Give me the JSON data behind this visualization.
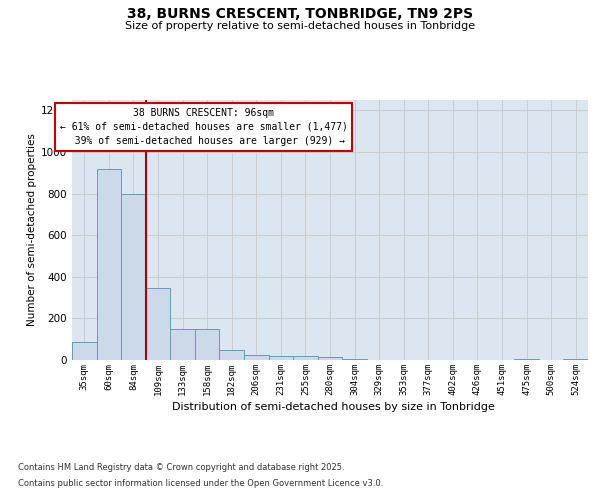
{
  "title_line1": "38, BURNS CRESCENT, TONBRIDGE, TN9 2PS",
  "title_line2": "Size of property relative to semi-detached houses in Tonbridge",
  "xlabel": "Distribution of semi-detached houses by size in Tonbridge",
  "ylabel": "Number of semi-detached properties",
  "categories": [
    "35sqm",
    "60sqm",
    "84sqm",
    "109sqm",
    "133sqm",
    "158sqm",
    "182sqm",
    "206sqm",
    "231sqm",
    "255sqm",
    "280sqm",
    "304sqm",
    "329sqm",
    "353sqm",
    "377sqm",
    "402sqm",
    "426sqm",
    "451sqm",
    "475sqm",
    "500sqm",
    "524sqm"
  ],
  "values": [
    85,
    920,
    800,
    345,
    150,
    150,
    50,
    25,
    20,
    20,
    15,
    5,
    0,
    0,
    0,
    0,
    0,
    0,
    5,
    0,
    5
  ],
  "bar_color": "#ccd9e8",
  "bar_edge_color": "#6699bb",
  "property_line_x": 2.5,
  "property_size": "96sqm",
  "pct_smaller": 61,
  "n_smaller": 1477,
  "pct_larger": 39,
  "n_larger": 929,
  "annotation_box_color": "#ffffff",
  "annotation_box_edge": "#cc0000",
  "property_line_color": "#aa0000",
  "ylim": [
    0,
    1250
  ],
  "yticks": [
    0,
    200,
    400,
    600,
    800,
    1000,
    1200
  ],
  "grid_color": "#cccccc",
  "bg_color": "#dce6f0",
  "footer_line1": "Contains HM Land Registry data © Crown copyright and database right 2025.",
  "footer_line2": "Contains public sector information licensed under the Open Government Licence v3.0."
}
